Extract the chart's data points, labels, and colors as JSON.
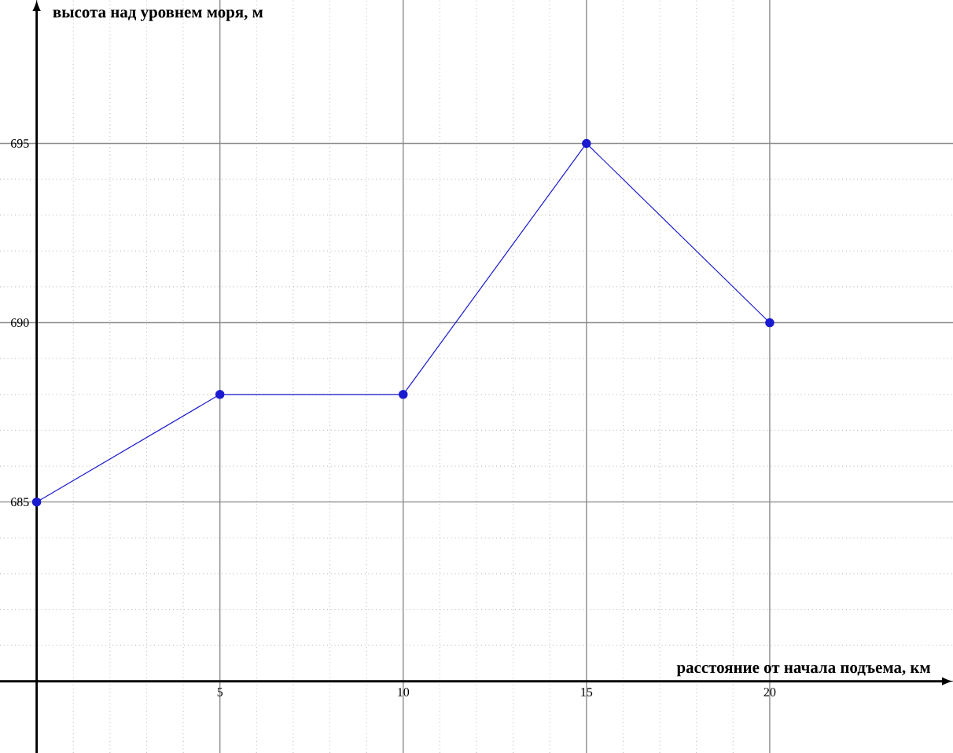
{
  "chart_data": {
    "type": "line",
    "xlabel": "расстояние от начала подъема, км",
    "ylabel": "высота над уровнем моря, м",
    "x": [
      0,
      5,
      10,
      15,
      20
    ],
    "series": [
      {
        "color": "#1a1ad0",
        "values": [
          685,
          688,
          688,
          695,
          690
        ]
      }
    ],
    "xlim": [
      -1,
      25
    ],
    "ylim": [
      678,
      699
    ],
    "xticks": [
      {
        "value": 0,
        "label": null
      },
      5,
      10,
      15,
      20
    ],
    "yticks": [
      {
        "value": 680,
        "label": null
      },
      685,
      690,
      695
    ],
    "grid": true,
    "marker": "circle",
    "line_style": "solid"
  }
}
